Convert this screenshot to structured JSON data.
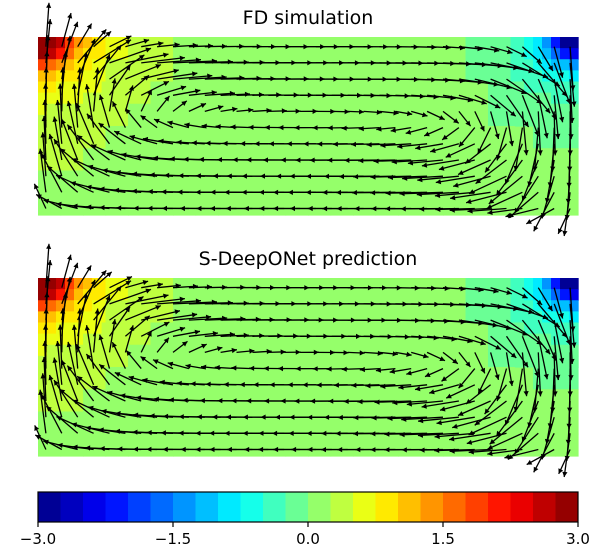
{
  "chart_data": [
    {
      "type": "heatmap",
      "title": "FD simulation",
      "overlay": "quiver",
      "grid": false,
      "pressure_range": [
        -3.0,
        3.0
      ],
      "hot_corner": "top-left",
      "cold_corner": "top-right",
      "flow": "clockwise recirculation vortex"
    },
    {
      "type": "heatmap",
      "title": "S-DeepONet prediction",
      "overlay": "quiver",
      "grid": false,
      "pressure_range": [
        -3.0,
        3.0
      ],
      "hot_corner": "top-left",
      "cold_corner": "top-right",
      "flow": "clockwise recirculation vortex"
    }
  ],
  "colorbar": {
    "colormap": "jet",
    "range": [
      -3.0,
      3.0
    ],
    "levels": 24,
    "orientation": "horizontal",
    "tick_labels": [
      "−3.0",
      "−1.5",
      "0.0",
      "1.5",
      "3.0"
    ],
    "tick_values": [
      -3.0,
      -1.5,
      0.0,
      1.5,
      3.0
    ]
  }
}
